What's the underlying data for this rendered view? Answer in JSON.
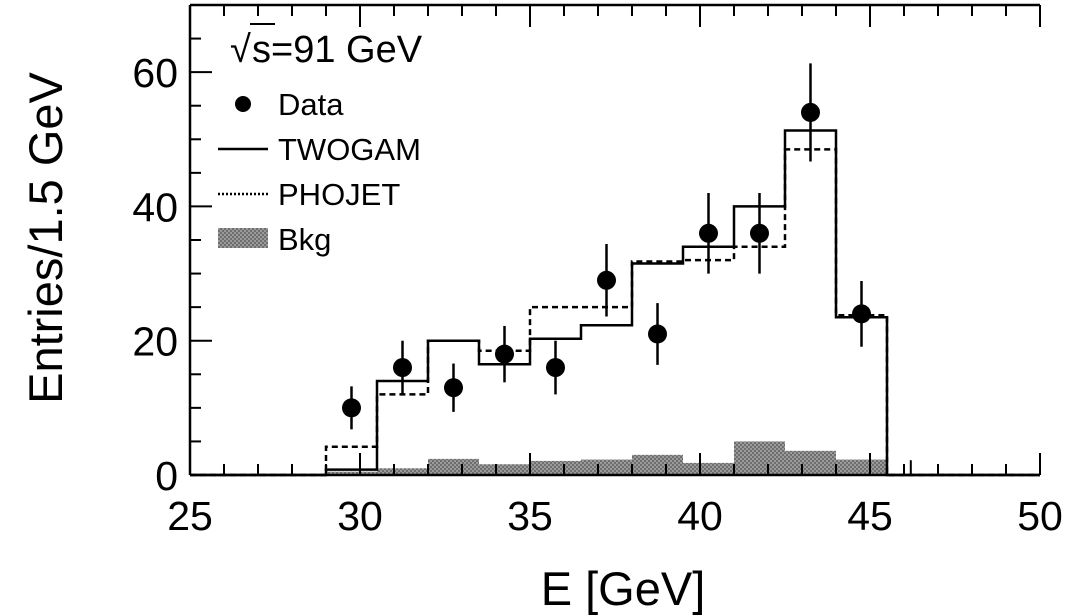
{
  "chart_data": {
    "type": "histogram",
    "xlabel": "E [GeV]",
    "ylabel": "Entries/1.5 GeV",
    "xlim": [
      25,
      50
    ],
    "ylim": [
      0,
      70
    ],
    "xticks": [
      25,
      30,
      35,
      40,
      45,
      50
    ],
    "yticks": [
      0,
      20,
      40,
      60
    ],
    "annotation": "s=91 GeV",
    "annotation_sqrt_symbol": "√",
    "legend_placement": "top-left",
    "legend": [
      {
        "label": "Data",
        "style": "marker"
      },
      {
        "label": "TWOGAM",
        "style": "solid"
      },
      {
        "label": "PHOJET",
        "style": "dotted"
      },
      {
        "label": "Bkg",
        "style": "hatched"
      }
    ],
    "bin_edges": [
      29.0,
      30.5,
      32.0,
      33.5,
      35.0,
      36.5,
      38.0,
      39.5,
      41.0,
      42.5,
      44.0,
      45.5
    ],
    "series": [
      {
        "name": "Data",
        "kind": "points",
        "x": [
          29.75,
          31.25,
          32.75,
          34.25,
          35.75,
          37.25,
          38.75,
          40.25,
          41.75,
          43.25,
          44.75
        ],
        "y": [
          10,
          16,
          13,
          18,
          16,
          29,
          21,
          36,
          36,
          54,
          24
        ],
        "err": [
          3.2,
          4.0,
          3.6,
          4.2,
          4.0,
          5.4,
          4.6,
          6.0,
          6.0,
          7.3,
          4.9
        ]
      },
      {
        "name": "TWOGAM",
        "kind": "step",
        "values": [
          0.8,
          14,
          20,
          16.5,
          20.3,
          22.3,
          31.5,
          34,
          40,
          51.3,
          23.5
        ]
      },
      {
        "name": "PHOJET",
        "kind": "step",
        "values": [
          4.2,
          12,
          20,
          18.5,
          25,
          25,
          31.8,
          32,
          34,
          48.5,
          23.8
        ]
      },
      {
        "name": "Bkg",
        "kind": "filled",
        "values": [
          0.5,
          1.0,
          2.4,
          1.6,
          2.1,
          2.3,
          3.0,
          1.8,
          5.0,
          3.6,
          2.3
        ]
      }
    ],
    "grid": false
  }
}
